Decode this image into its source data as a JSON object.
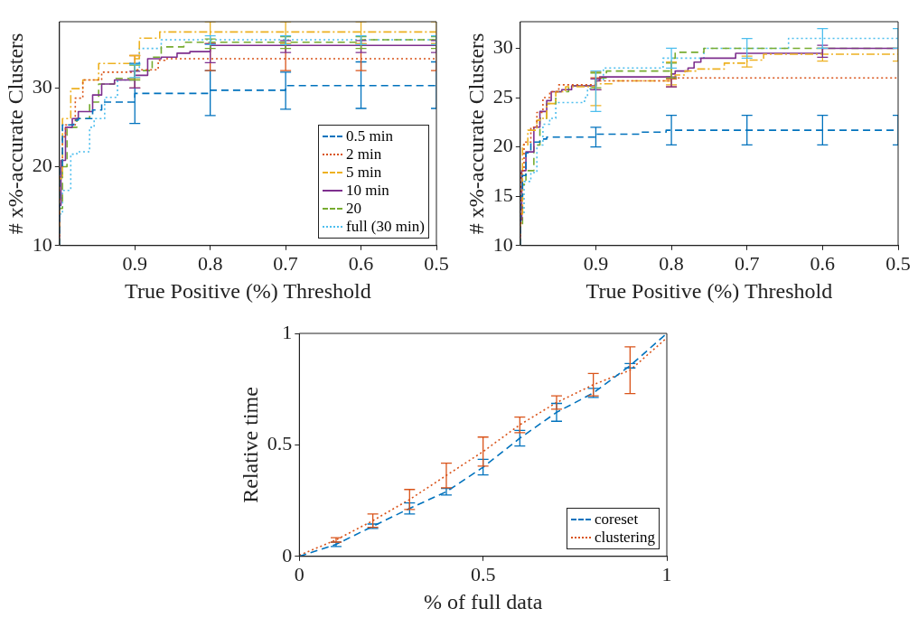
{
  "chart_data": [
    {
      "type": "step",
      "xlabel": "True Positive (%) Threshold",
      "ylabel": "# x%-accurate Clusters",
      "xlim": [
        1,
        0.5
      ],
      "xticks": [
        0.9,
        0.8,
        0.7,
        0.6,
        0.5
      ],
      "ylim": [
        10,
        38.4
      ],
      "yticks": [
        10,
        20,
        30
      ],
      "grid": false,
      "legend": "bottom right",
      "series": [
        {
          "name": "0.5 min",
          "color": "#0072bd",
          "line_style": "dashed",
          "x": [
            1,
            0.996,
            0.981,
            0.975,
            0.956,
            0.944,
            0.927,
            0.9,
            0.867,
            0.8,
            0.748,
            0.7,
            0.631,
            0.6,
            0.5
          ],
          "values": [
            10,
            20,
            25.3,
            25.9,
            26.1,
            27.2,
            28.2,
            28.2,
            29.3,
            29.3,
            29.7,
            29.7,
            30.3,
            30.3,
            30.3
          ],
          "errors": [
            null,
            null,
            null,
            null,
            null,
            null,
            null,
            [
              25.5,
              33.1
            ],
            null,
            [
              26.5,
              32.2
            ],
            null,
            [
              27.3,
              32
            ],
            null,
            [
              27.4,
              33.3
            ],
            [
              27.4,
              33.3
            ]
          ]
        },
        {
          "name": "2 min",
          "color": "#d95319",
          "line_style": "dotted",
          "x": [
            1,
            0.996,
            0.992,
            0.979,
            0.969,
            0.944,
            0.923,
            0.9,
            0.869,
            0.86,
            0.8,
            0.7,
            0.6,
            0.5
          ],
          "values": [
            10,
            20,
            23.8,
            25.3,
            28.7,
            31,
            32,
            32,
            32.3,
            33.5,
            33.7,
            33.7,
            33.7,
            33.7
          ],
          "errors": [
            null,
            null,
            null,
            null,
            null,
            null,
            null,
            [
              30,
              34.1
            ],
            null,
            null,
            [
              32.2,
              35.6
            ],
            [
              32.2,
              35.6
            ],
            [
              32.2,
              35.6
            ],
            [
              32.2,
              35.6
            ]
          ]
        },
        {
          "name": "5 min",
          "color": "#edb120",
          "line_style": "dashdot",
          "x": [
            1,
            0.996,
            0.985,
            0.969,
            0.948,
            0.938,
            0.9,
            0.894,
            0.867,
            0.806,
            0.8,
            0.7,
            0.6,
            0.5
          ],
          "values": [
            10,
            18.5,
            26.1,
            29.9,
            31,
            33.1,
            33.1,
            33.7,
            36.3,
            37.1,
            37.1,
            37.1,
            37.1,
            37.1
          ],
          "errors": [
            null,
            null,
            null,
            null,
            null,
            null,
            [
              31.2,
              34.1
            ],
            null,
            null,
            null,
            [
              35.6,
              38.4
            ],
            [
              35.6,
              38.4
            ],
            [
              35.6,
              38.4
            ],
            [
              35.6,
              38.4
            ]
          ]
        },
        {
          "name": "10 min",
          "color": "#7e2f8e",
          "line_style": "solid",
          "x": [
            1,
            0.998,
            0.992,
            0.983,
            0.975,
            0.956,
            0.944,
            0.927,
            0.91,
            0.9,
            0.883,
            0.865,
            0.844,
            0.827,
            0.8,
            0.798,
            0.7,
            0.6,
            0.5
          ],
          "values": [
            10,
            15.1,
            20.8,
            25,
            26.1,
            27,
            29.1,
            30.5,
            31,
            31,
            31.6,
            33.7,
            33.9,
            34.4,
            34.6,
            35.4,
            35.4,
            35.4,
            35.4
          ],
          "errors": [
            null,
            null,
            null,
            null,
            null,
            null,
            null,
            null,
            null,
            [
              30,
              32.1
            ],
            null,
            null,
            null,
            null,
            [
              33.2,
              35.6
            ],
            null,
            [
              34.5,
              36
            ],
            [
              34.5,
              36
            ],
            [
              34.5,
              36
            ]
          ]
        },
        {
          "name": "20",
          "color": "#77ac30",
          "line_style": "dashed",
          "x": [
            1,
            0.996,
            0.99,
            0.977,
            0.96,
            0.948,
            0.927,
            0.91,
            0.9,
            0.877,
            0.865,
            0.835,
            0.823,
            0.8,
            0.7,
            0.6,
            0.533,
            0.5
          ],
          "values": [
            10,
            14.7,
            20,
            25,
            26.1,
            28.2,
            30.5,
            31.2,
            31.2,
            32.2,
            33.9,
            35.2,
            35.8,
            35.8,
            35.8,
            35.8,
            36.1,
            36.1
          ],
          "errors": [
            null,
            null,
            null,
            null,
            null,
            null,
            null,
            null,
            [
              31,
              32.9
            ],
            null,
            null,
            null,
            null,
            [
              35,
              36.2
            ],
            [
              35,
              36.5
            ],
            [
              35,
              36.5
            ],
            null,
            [
              35,
              36.5
            ]
          ]
        },
        {
          "name": "full (30 min)",
          "color": "#4dbeee",
          "line_style": "dotted",
          "x": [
            1,
            0.996,
            0.985,
            0.977,
            0.96,
            0.954,
            0.94,
            0.923,
            0.91,
            0.9,
            0.894,
            0.865,
            0.81,
            0.8,
            0.7,
            0.6,
            0.5
          ],
          "values": [
            10,
            14,
            17,
            21.6,
            21.9,
            25,
            26.1,
            28.8,
            31,
            31,
            32.2,
            35,
            36.1,
            36.1,
            36.1,
            36.1,
            36.1
          ],
          "errors": [
            null,
            null,
            null,
            null,
            null,
            null,
            null,
            null,
            null,
            [
              31.3,
              33
            ],
            null,
            null,
            null,
            [
              35.5,
              36.6
            ],
            [
              35.5,
              36.6
            ],
            [
              35.5,
              36.6
            ],
            [
              35.5,
              36.6
            ]
          ]
        }
      ]
    },
    {
      "type": "step",
      "xlabel": "True Positive (%) Threshold",
      "ylabel": "# x%-accurate Clusters",
      "xlim": [
        1,
        0.5
      ],
      "xticks": [
        0.9,
        0.8,
        0.7,
        0.6,
        0.5
      ],
      "ylim": [
        10,
        32.7
      ],
      "yticks": [
        10,
        15,
        20,
        25,
        30
      ],
      "grid": false,
      "series": [
        {
          "color": "#0072bd",
          "line_style": "dashed",
          "x": [
            1,
            0.997,
            0.9925,
            0.986,
            0.974,
            0.965,
            0.945,
            0.9,
            0.84,
            0.807,
            0.8,
            0.7,
            0.6,
            0.5
          ],
          "values": [
            10,
            15,
            17.1,
            19.4,
            20.5,
            20.8,
            21,
            21,
            21.3,
            21.5,
            21.7,
            21.7,
            21.7,
            21.7
          ],
          "errors": [
            null,
            null,
            null,
            null,
            null,
            null,
            null,
            [
              20,
              22
            ],
            null,
            null,
            [
              20.2,
              23.2
            ],
            [
              20.2,
              23.2
            ],
            [
              20.2,
              23.2
            ],
            [
              20.2,
              23.2
            ]
          ]
        },
        {
          "color": "#d95319",
          "line_style": "dotted",
          "x": [
            1,
            0.999,
            0.995,
            0.986,
            0.978,
            0.97,
            0.961,
            0.949,
            0.947,
            0.9,
            0.849,
            0.8,
            0.795,
            0.7,
            0.6,
            0.5
          ],
          "values": [
            10,
            12,
            17.6,
            20.5,
            22,
            23.5,
            25,
            25.6,
            26.3,
            26.3,
            26.7,
            26.7,
            27,
            27,
            27,
            27
          ],
          "errors": [
            null,
            null,
            null,
            null,
            null,
            null,
            null,
            null,
            null,
            [
              25.8,
              27
            ],
            null,
            [
              26.1,
              26.9
            ],
            null,
            null,
            null,
            null
          ]
        },
        {
          "color": "#edb120",
          "line_style": "dashdot",
          "x": [
            1,
            0.997,
            0.99,
            0.978,
            0.974,
            0.965,
            0.953,
            0.94,
            0.928,
            0.9,
            0.878,
            0.853,
            0.8,
            0.795,
            0.782,
            0.765,
            0.73,
            0.7175,
            0.7,
            0.678,
            0.674,
            0.6,
            0.5
          ],
          "values": [
            10,
            13.2,
            20.2,
            21.7,
            22.7,
            22.9,
            24.4,
            25.6,
            26.1,
            26.1,
            26.4,
            26.7,
            26.7,
            27,
            27.3,
            27.7,
            27.9,
            28.5,
            28.5,
            28.8,
            29.4,
            29.4,
            29.4
          ],
          "errors": [
            null,
            null,
            null,
            null,
            null,
            null,
            null,
            null,
            null,
            [
              24.2,
              27.6
            ],
            null,
            null,
            [
              26.3,
              28.6
            ],
            null,
            null,
            null,
            null,
            null,
            [
              28.1,
              29.2
            ],
            null,
            null,
            [
              28.7,
              30
            ],
            [
              28.7,
              30
            ]
          ]
        },
        {
          "color": "#7e2f8e",
          "line_style": "solid",
          "x": [
            1,
            0.998,
            0.9925,
            0.982,
            0.974,
            0.965,
            0.959,
            0.945,
            0.932,
            0.911,
            0.9,
            0.895,
            0.882,
            0.8,
            0.795,
            0.778,
            0.77,
            0.761,
            0.715,
            0.62,
            0.6,
            0.574,
            0.5
          ],
          "values": [
            10,
            12.6,
            17.6,
            19.5,
            22,
            23.6,
            24.7,
            25.6,
            25.8,
            26.2,
            26.2,
            26.7,
            27.1,
            27.1,
            27.4,
            27.7,
            28,
            28.6,
            29,
            29.5,
            29.5,
            30,
            30
          ],
          "errors": [
            null,
            null,
            null,
            null,
            null,
            null,
            null,
            null,
            null,
            null,
            [
              25.8,
              26.9
            ],
            null,
            null,
            [
              26.1,
              27.1
            ],
            null,
            null,
            null,
            null,
            null,
            null,
            [
              29.1,
              30.3
            ],
            null,
            null
          ]
        },
        {
          "color": "#77ac30",
          "line_style": "dashed",
          "x": [
            1,
            0.997,
            0.9925,
            0.982,
            0.974,
            0.965,
            0.953,
            0.936,
            0.92,
            0.9,
            0.886,
            0.811,
            0.8,
            0.795,
            0.757,
            0.72,
            0.7,
            0.6,
            0.5
          ],
          "values": [
            10,
            12,
            16.2,
            17.6,
            20.2,
            22.9,
            24.4,
            25.6,
            26.2,
            26.2,
            27,
            27.7,
            27.7,
            29,
            29.6,
            30,
            30,
            30,
            30
          ],
          "errors": [
            null,
            null,
            null,
            null,
            null,
            null,
            null,
            null,
            null,
            [
              26,
              27.5
            ],
            null,
            null,
            [
              27,
              28.5
            ],
            null,
            null,
            null,
            null,
            null,
            null
          ]
        },
        {
          "color": "#4dbeee",
          "line_style": "dotted",
          "x": [
            1,
            0.995,
            0.986,
            0.978,
            0.97,
            0.961,
            0.953,
            0.945,
            0.915,
            0.911,
            0.903,
            0.9,
            0.89,
            0.865,
            0.811,
            0.803,
            0.8,
            0.757,
            0.749,
            0.7,
            0.645,
            0.636,
            0.6,
            0.5
          ],
          "values": [
            10,
            13.2,
            16.5,
            17.4,
            20.2,
            22.3,
            22.9,
            24.5,
            24.5,
            25,
            25.9,
            25.9,
            26.8,
            28,
            28,
            29,
            29,
            29,
            30,
            30,
            30,
            31,
            31,
            31
          ],
          "errors": [
            null,
            null,
            null,
            null,
            null,
            null,
            null,
            null,
            null,
            null,
            null,
            [
              23.6,
              27.7
            ],
            null,
            null,
            null,
            null,
            [
              28,
              30
            ],
            null,
            null,
            [
              29,
              31
            ],
            null,
            null,
            [
              30,
              32
            ],
            [
              30,
              32
            ]
          ]
        }
      ]
    },
    {
      "type": "line",
      "xlabel": "% of full data",
      "ylabel": "Relative time",
      "xlim": [
        0,
        1
      ],
      "xticks": [
        0,
        0.5,
        1
      ],
      "ylim": [
        0,
        1
      ],
      "yticks": [
        0,
        0.5,
        1
      ],
      "grid": false,
      "legend": "bottom right",
      "x": [
        0,
        0.1,
        0.2,
        0.3,
        0.4,
        0.5,
        0.6,
        0.7,
        0.8,
        0.9,
        1
      ],
      "series": [
        {
          "name": "coreset",
          "color": "#0072bd",
          "line_style": "dashed",
          "values": [
            0,
            0.054,
            0.135,
            0.215,
            0.29,
            0.4,
            0.53,
            0.646,
            0.733,
            0.855,
            1
          ],
          "errors": [
            null,
            0.01,
            0.01,
            0.025,
            0.015,
            0.035,
            0.035,
            0.04,
            0.02,
            0.01,
            null
          ]
        },
        {
          "name": "clustering",
          "color": "#d95319",
          "line_style": "dotted",
          "values": [
            0.005,
            0.074,
            0.16,
            0.255,
            0.363,
            0.47,
            0.59,
            0.69,
            0.77,
            0.835,
            0.98
          ],
          "errors": [
            null,
            0.01,
            0.03,
            0.045,
            0.055,
            0.065,
            0.035,
            0.03,
            0.05,
            0.105,
            null
          ]
        }
      ]
    }
  ]
}
